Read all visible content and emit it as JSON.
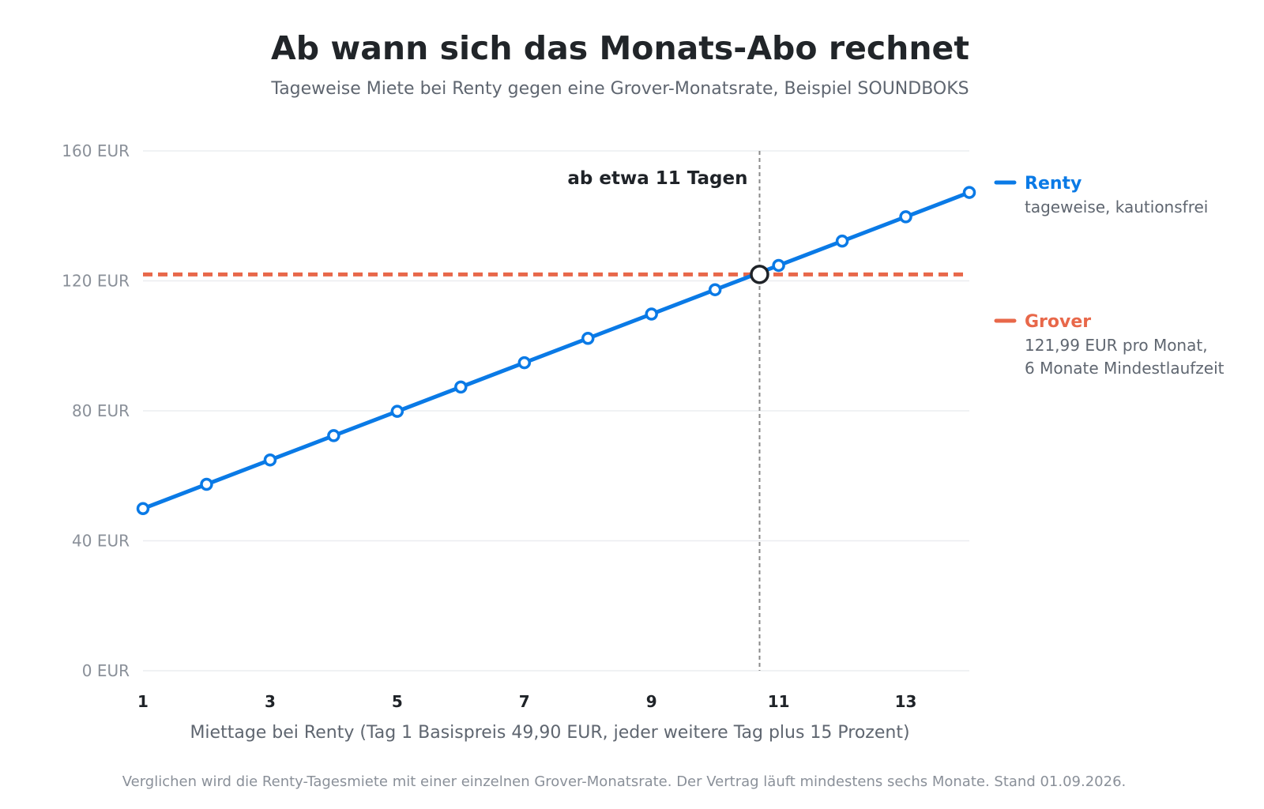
{
  "chart_data": {
    "type": "line",
    "title": "Ab wann sich das Monats-Abo rechnet",
    "subtitle": "Tageweise Miete bei Renty gegen eine Grover-Monatsrate, Beispiel SOUNDBOKS",
    "xlabel": "Miettage bei Renty (Tag 1 Basispreis 49,90 EUR, jeder weitere Tag plus 15 Prozent)",
    "xlim": [
      1,
      14
    ],
    "ylim": [
      0,
      160
    ],
    "x_ticks": [
      1,
      3,
      5,
      7,
      9,
      11,
      13
    ],
    "y_ticks": [
      {
        "value": 0,
        "label": "0 EUR"
      },
      {
        "value": 40,
        "label": "40 EUR"
      },
      {
        "value": 80,
        "label": "80 EUR"
      },
      {
        "value": 120,
        "label": "120 EUR"
      },
      {
        "value": 160,
        "label": "160 EUR"
      }
    ],
    "grid": "horizontal",
    "legend_position": "right",
    "series": [
      {
        "name": "Renty",
        "description": [
          "tageweise, kautionsfrei"
        ],
        "color": "#0a7ae6",
        "style": "solid-with-markers",
        "x": [
          1,
          2,
          3,
          4,
          5,
          6,
          7,
          8,
          9,
          10,
          11,
          12,
          13,
          14
        ],
        "values": [
          49.9,
          57.39,
          64.87,
          72.36,
          79.84,
          87.33,
          94.81,
          102.3,
          109.78,
          117.27,
          124.75,
          132.24,
          139.72,
          147.21
        ]
      },
      {
        "name": "Grover",
        "description": [
          "121,99 EUR pro Monat,",
          "6 Monate Mindestlaufzeit"
        ],
        "color": "#e8684a",
        "style": "dashed",
        "constant": 121.99
      }
    ],
    "intersection": {
      "x": 10.7,
      "y": 121.99,
      "label": "ab etwa 11 Tagen"
    },
    "footnote": "Verglichen wird die Renty-Tagesmiete mit einer einzelnen Grover-Monatsrate. Der Vertrag läuft mindestens sechs Monate. Stand 01.09.2026."
  }
}
